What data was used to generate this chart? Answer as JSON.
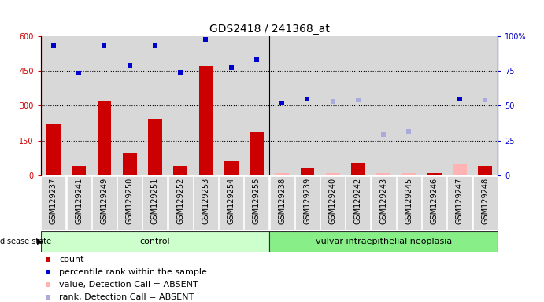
{
  "title": "GDS2418 / 241368_at",
  "samples": [
    "GSM129237",
    "GSM129241",
    "GSM129249",
    "GSM129250",
    "GSM129251",
    "GSM129252",
    "GSM129253",
    "GSM129254",
    "GSM129255",
    "GSM129238",
    "GSM129239",
    "GSM129240",
    "GSM129242",
    "GSM129243",
    "GSM129245",
    "GSM129246",
    "GSM129247",
    "GSM129248"
  ],
  "group1_label": "control",
  "group2_label": "vulvar intraepithelial neoplasia",
  "group1_count": 9,
  "group2_count": 9,
  "bar_values": [
    220,
    40,
    320,
    95,
    245,
    40,
    470,
    60,
    185,
    8,
    30,
    8,
    55,
    8,
    8,
    8,
    50,
    40
  ],
  "bar_absent": [
    false,
    false,
    false,
    false,
    false,
    false,
    false,
    false,
    false,
    true,
    false,
    true,
    false,
    true,
    true,
    false,
    true,
    false
  ],
  "blue_rank_values": [
    560,
    440,
    560,
    475,
    560,
    445,
    585,
    465,
    500,
    310,
    330,
    320,
    325,
    null,
    null,
    null,
    330,
    325
  ],
  "blue_rank_absent": [
    false,
    false,
    false,
    false,
    false,
    false,
    false,
    false,
    false,
    false,
    false,
    true,
    true,
    null,
    null,
    null,
    false,
    true
  ],
  "absent_rank_values": [
    null,
    null,
    null,
    null,
    null,
    null,
    null,
    null,
    null,
    null,
    null,
    null,
    null,
    175,
    190,
    null,
    null,
    null
  ],
  "ylim_left": [
    0,
    600
  ],
  "ylim_right": [
    0,
    100
  ],
  "yticks_left": [
    0,
    150,
    300,
    450,
    600
  ],
  "yticks_right": [
    0,
    25,
    50,
    75,
    100
  ],
  "bar_color": "#cc0000",
  "bar_absent_color": "#ffb3b3",
  "blue_present_color": "#0000cc",
  "blue_absent_color": "#aaaadd",
  "label_color_left": "#cc0000",
  "label_color_right": "#0000cc",
  "group1_bg": "#ccffcc",
  "group2_bg": "#88ee88",
  "title_fontsize": 10,
  "tick_fontsize": 7,
  "legend_fontsize": 8
}
